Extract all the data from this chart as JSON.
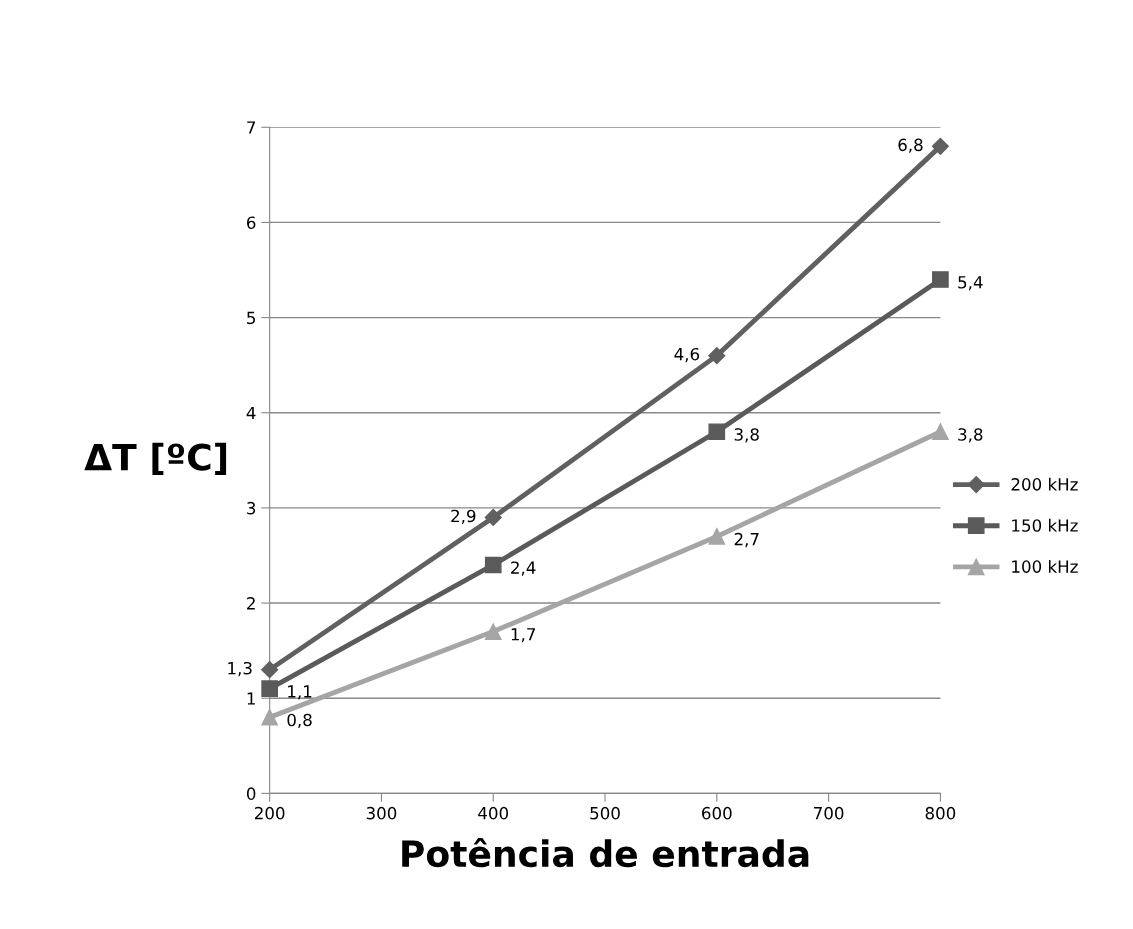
{
  "chart_data": {
    "type": "line",
    "xlabel": "Potência de entrada",
    "ylabel": "ΔT [ºC]",
    "x": [
      200,
      400,
      600,
      800
    ],
    "series": [
      {
        "name": "200 kHz",
        "color": "#606060",
        "marker": "diamond",
        "values": [
          1.3,
          2.9,
          4.6,
          6.8
        ],
        "value_labels": [
          "1,3",
          "2,9",
          "4,6",
          "6,8"
        ]
      },
      {
        "name": "150 kHz",
        "color": "#5a5a5a",
        "marker": "square",
        "values": [
          1.1,
          2.4,
          3.8,
          5.4
        ],
        "value_labels": [
          "1,1",
          "2,4",
          "3,8",
          "5,4"
        ]
      },
      {
        "name": "100 kHz",
        "color": "#a5a5a5",
        "marker": "triangle",
        "values": [
          0.8,
          1.7,
          2.7,
          3.8
        ],
        "value_labels": [
          "0,8",
          "1,7",
          "2,7",
          "3,8"
        ]
      }
    ],
    "xlim": [
      200,
      800
    ],
    "xticks": [
      200,
      300,
      400,
      500,
      600,
      700,
      800
    ],
    "ylim": [
      0,
      7
    ],
    "yticks": [
      0,
      1,
      2,
      3,
      4,
      5,
      6,
      7
    ],
    "grid": "y",
    "legend": "right",
    "line_style": "solid"
  }
}
